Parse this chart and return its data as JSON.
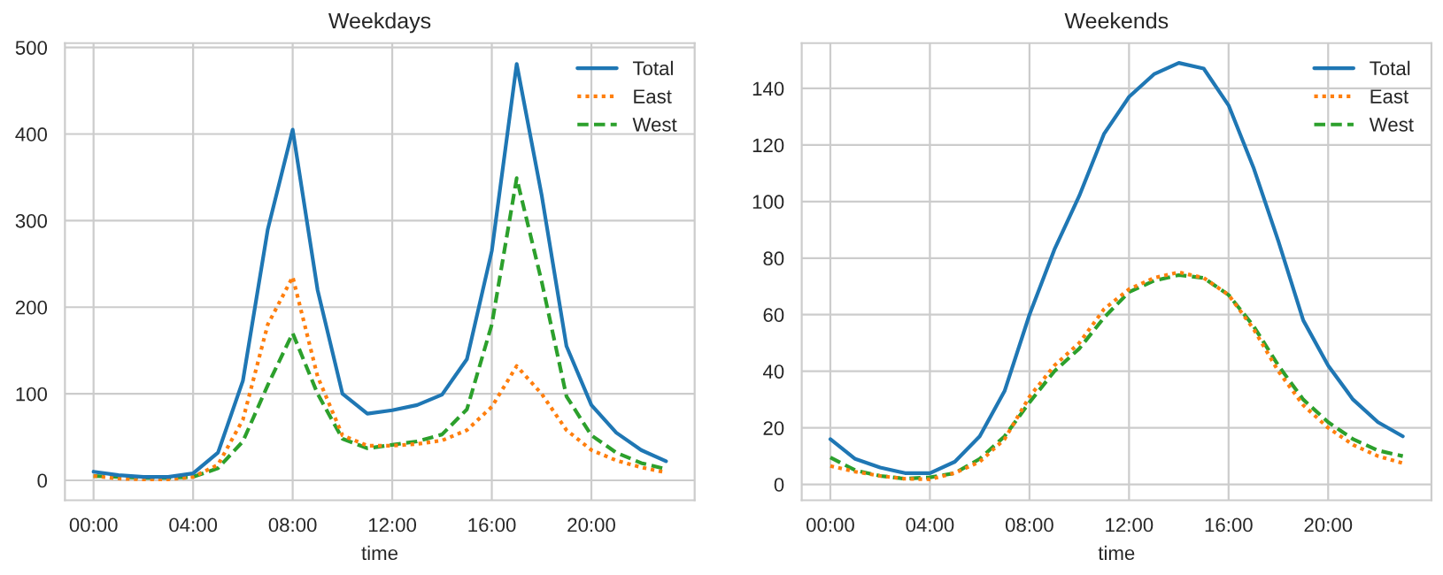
{
  "chart_data": [
    {
      "type": "line",
      "title": "Weekdays",
      "xlabel": "time",
      "x": [
        0,
        1,
        2,
        3,
        4,
        5,
        6,
        7,
        8,
        9,
        10,
        11,
        12,
        13,
        14,
        15,
        16,
        17,
        18,
        19,
        20,
        21,
        22,
        23
      ],
      "series": [
        {
          "name": "Total",
          "color": "#1f77b4",
          "line_style": "solid",
          "values": [
            10,
            6,
            4,
            4,
            8,
            32,
            115,
            290,
            405,
            220,
            100,
            77,
            81,
            87,
            99,
            140,
            265,
            481,
            330,
            155,
            87,
            55,
            35,
            22
          ]
        },
        {
          "name": "East",
          "color": "#ff7f0e",
          "line_style": "dotted",
          "values": [
            5,
            2,
            1,
            1,
            4,
            18,
            70,
            180,
            235,
            120,
            52,
            40,
            40,
            42,
            46,
            58,
            85,
            132,
            100,
            58,
            35,
            23,
            15,
            9
          ]
        },
        {
          "name": "West",
          "color": "#2ca02c",
          "line_style": "dashed",
          "values": [
            5,
            4,
            3,
            3,
            4,
            14,
            45,
            110,
            170,
            100,
            48,
            37,
            41,
            45,
            53,
            82,
            180,
            349,
            230,
            97,
            52,
            32,
            20,
            13
          ]
        }
      ],
      "xlim": [
        -1.15,
        24.15
      ],
      "ylim": [
        -23,
        505
      ],
      "xticks": [
        {
          "value": 0,
          "label": "00:00"
        },
        {
          "value": 4,
          "label": "04:00"
        },
        {
          "value": 8,
          "label": "08:00"
        },
        {
          "value": 12,
          "label": "12:00"
        },
        {
          "value": 16,
          "label": "16:00"
        },
        {
          "value": 20,
          "label": "20:00"
        }
      ],
      "yticks": [
        0,
        100,
        200,
        300,
        400,
        500
      ],
      "grid": true,
      "legend": "top right",
      "marker": "none"
    },
    {
      "type": "line",
      "title": "Weekends",
      "xlabel": "time",
      "x": [
        0,
        1,
        2,
        3,
        4,
        5,
        6,
        7,
        8,
        9,
        10,
        11,
        12,
        13,
        14,
        15,
        16,
        17,
        18,
        19,
        20,
        21,
        22,
        23
      ],
      "series": [
        {
          "name": "Total",
          "color": "#1f77b4",
          "line_style": "solid",
          "values": [
            16,
            9,
            6,
            4,
            4,
            8,
            17,
            33,
            60,
            83,
            102,
            124,
            137,
            145,
            149,
            147,
            134,
            112,
            86,
            58,
            42,
            30,
            22,
            17
          ]
        },
        {
          "name": "East",
          "color": "#ff7f0e",
          "line_style": "dotted",
          "values": [
            6.5,
            4.5,
            3,
            2,
            1.8,
            4,
            8,
            16,
            31,
            42,
            50,
            62,
            69,
            73,
            75,
            73,
            67,
            55,
            40,
            28,
            20,
            14,
            10,
            7.5
          ]
        },
        {
          "name": "West",
          "color": "#2ca02c",
          "line_style": "dashed",
          "values": [
            9.5,
            5,
            3,
            2,
            2.5,
            4,
            9,
            17,
            29,
            40,
            48,
            59,
            68,
            72,
            74,
            73,
            67,
            56,
            42,
            30,
            22,
            16,
            12,
            10
          ]
        }
      ],
      "xlim": [
        -1.15,
        24.15
      ],
      "ylim": [
        -5.6,
        156
      ],
      "xticks": [
        {
          "value": 0,
          "label": "00:00"
        },
        {
          "value": 4,
          "label": "04:00"
        },
        {
          "value": 8,
          "label": "08:00"
        },
        {
          "value": 12,
          "label": "12:00"
        },
        {
          "value": 16,
          "label": "16:00"
        },
        {
          "value": 20,
          "label": "20:00"
        }
      ],
      "yticks": [
        0,
        20,
        40,
        60,
        80,
        100,
        120,
        140
      ],
      "grid": true,
      "legend": "top right",
      "marker": "none"
    }
  ]
}
